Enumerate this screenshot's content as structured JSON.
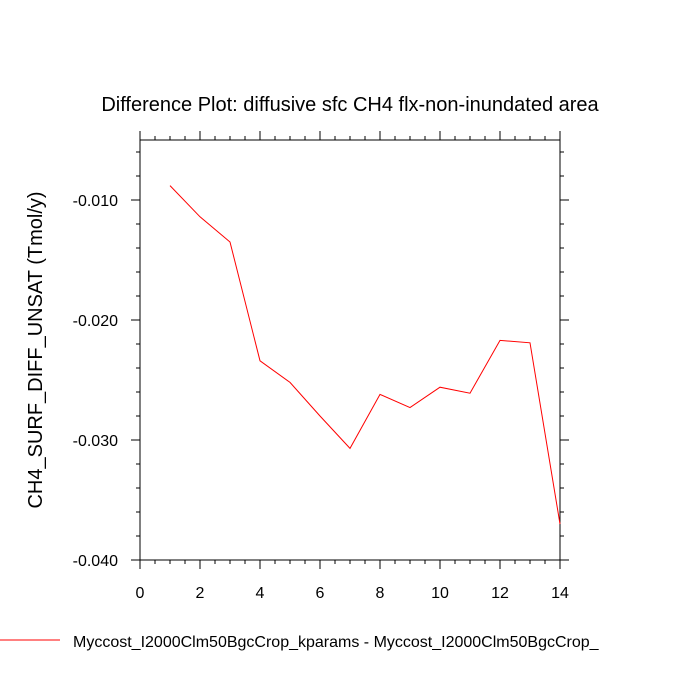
{
  "chart_data": {
    "type": "line",
    "title": "Difference Plot: diffusive sfc CH4 flx-non-inundated area",
    "xlabel": "",
    "ylabel": "CH4_SURF_DIFF_UNSAT  (Tmol/y)",
    "xlim": [
      0,
      14
    ],
    "ylim": [
      -0.04,
      -0.005
    ],
    "x_ticks": [
      0,
      2,
      4,
      6,
      8,
      10,
      12,
      14
    ],
    "x_tick_labels": [
      "0",
      "2",
      "4",
      "6",
      "8",
      "10",
      "12",
      "14"
    ],
    "y_ticks": [
      -0.04,
      -0.03,
      -0.02,
      -0.01
    ],
    "y_tick_labels": [
      "-0.040",
      "-0.030",
      "-0.020",
      "-0.010"
    ],
    "grid": false,
    "legend_position": "bottom",
    "series": [
      {
        "name": "Myccost_I2000Clm50BgcCrop_kparams - Myccost_I2000Clm50BgcCrop_",
        "color": "#ff0000",
        "x": [
          1,
          2,
          3,
          4,
          5,
          6,
          7,
          8,
          9,
          10,
          11,
          12,
          13,
          14
        ],
        "y": [
          -0.0088,
          -0.0114,
          -0.0135,
          -0.0234,
          -0.0252,
          -0.028,
          -0.0307,
          -0.0262,
          -0.0273,
          -0.0256,
          -0.0261,
          -0.0217,
          -0.0219,
          -0.037
        ]
      }
    ]
  }
}
